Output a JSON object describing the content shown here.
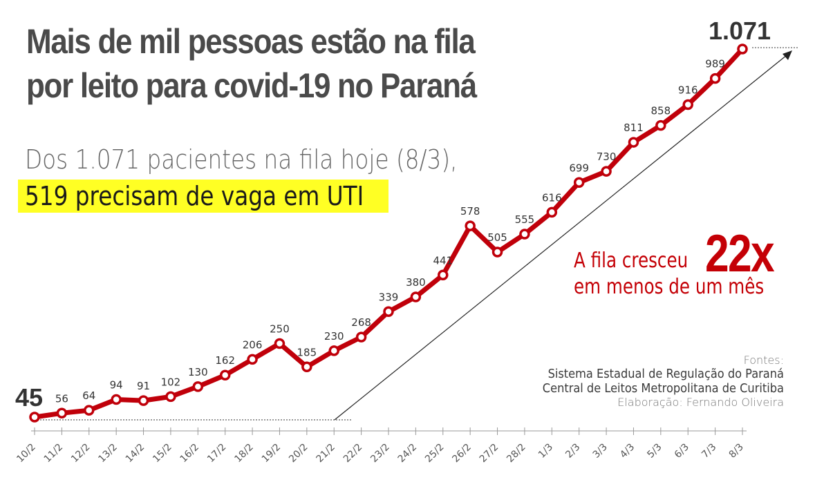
{
  "header": {
    "title_line1": "Mais de mil pessoas estão na fila",
    "title_line2": "por leito para covid-19 no Paraná",
    "subtitle": "Dos 1.071 pacientes na fila hoje (8/3),",
    "highlight": "519 precisam de vaga em UTI"
  },
  "annotation": {
    "line1": "A fila cresceu",
    "big": "22x",
    "line2": "em menos de um mês"
  },
  "sources": {
    "heading": "Fontes:",
    "source1": "Sistema Estadual de Regulação do Paraná",
    "source2": "Central de Leitos Metropolitana de Curitiba",
    "credit": "Elaboração: Fernando Oliveira"
  },
  "colors": {
    "line": "#c0000a",
    "highlight": "#ffff24",
    "accent_text": "#c40006"
  },
  "chart_data": {
    "type": "line",
    "title": "Mais de mil pessoas estão na fila por leito para covid-19 no Paraná",
    "categories": [
      "10/2",
      "11/2",
      "12/2",
      "13/2",
      "14/2",
      "15/2",
      "16/2",
      "17/2",
      "18/2",
      "19/2",
      "20/2",
      "21/2",
      "22/2",
      "23/2",
      "24/2",
      "25/2",
      "26/2",
      "27/2",
      "28/2",
      "1/3",
      "2/3",
      "3/3",
      "4/3",
      "5/3",
      "6/3",
      "7/3",
      "8/3"
    ],
    "values": [
      45,
      56,
      64,
      94,
      91,
      102,
      130,
      162,
      206,
      250,
      185,
      230,
      268,
      339,
      380,
      441,
      578,
      505,
      555,
      616,
      699,
      730,
      811,
      858,
      916,
      989,
      1071
    ],
    "value_labels": [
      "45",
      "56",
      "64",
      "94",
      "91",
      "102",
      "130",
      "162",
      "206",
      "250",
      "185",
      "230",
      "268",
      "339",
      "380",
      "441",
      "578",
      "505",
      "555",
      "616",
      "699",
      "730",
      "811",
      "858",
      "916",
      "989",
      "1.071"
    ],
    "xlabel": "",
    "ylabel": "",
    "grid": false,
    "legend": "none"
  }
}
